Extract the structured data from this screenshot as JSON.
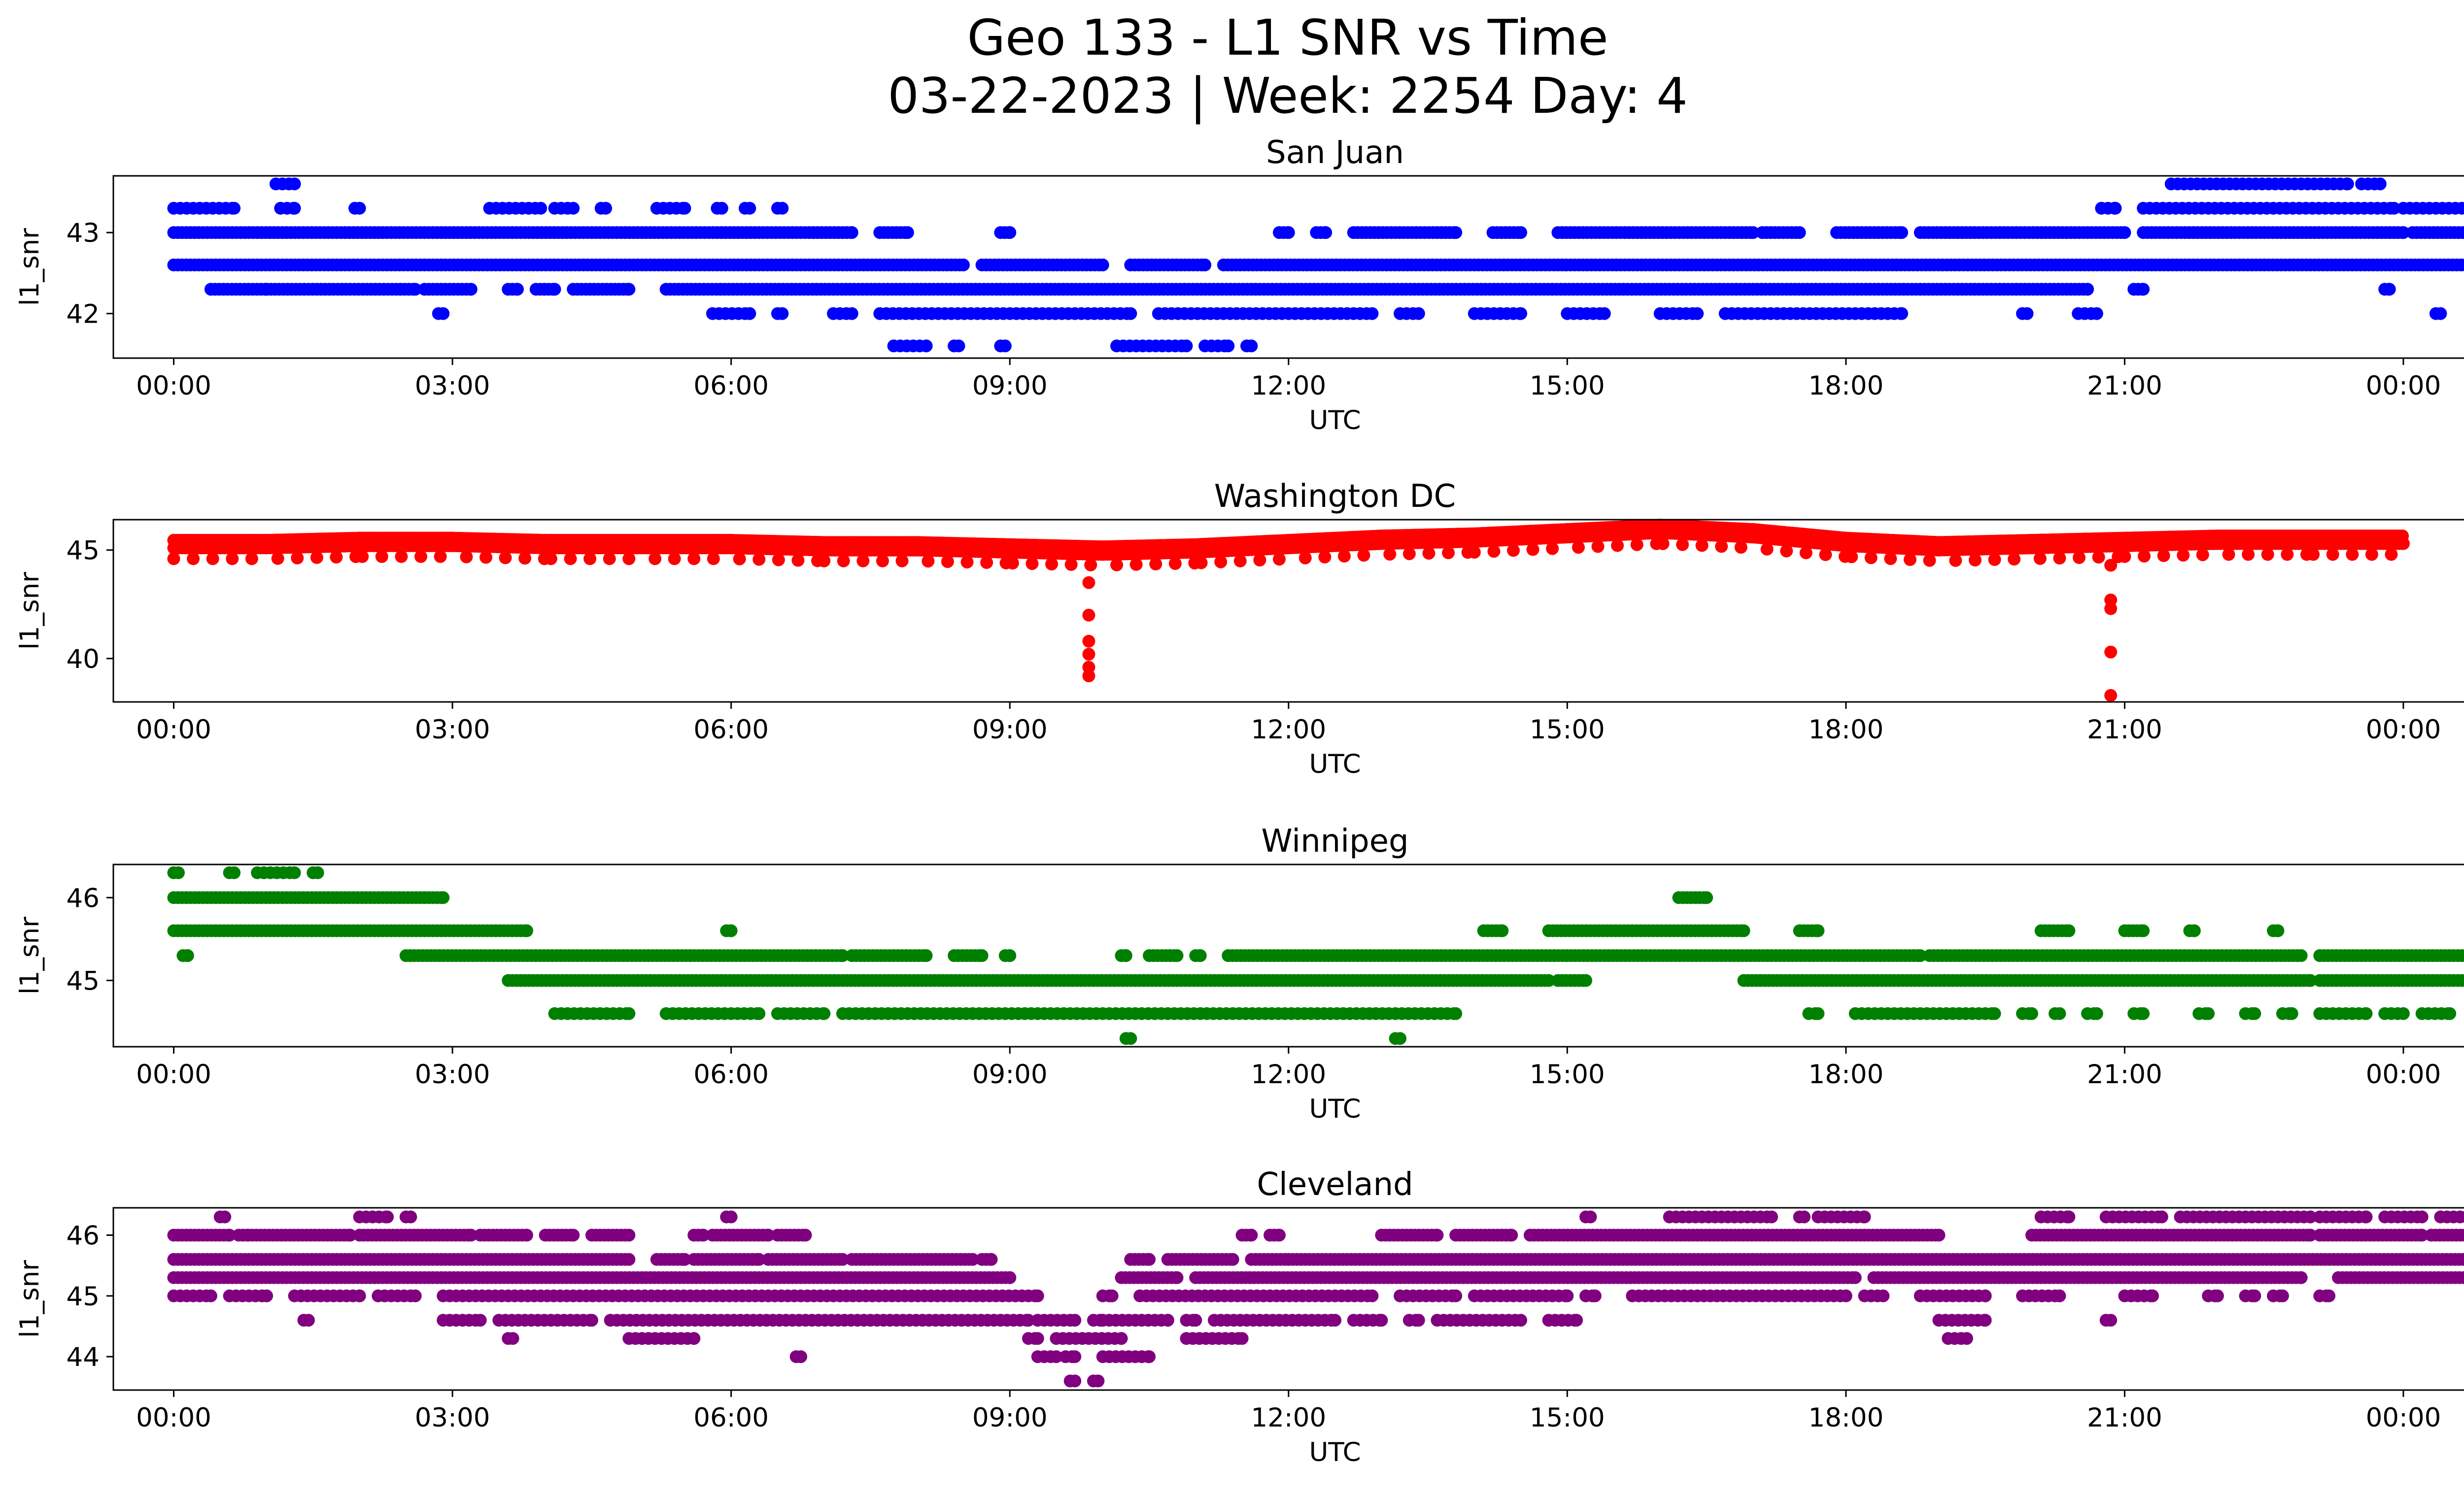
{
  "title_line1": "Geo 133 - L1 SNR vs Time",
  "title_line2": "03-22-2023 | Week: 2254 Day: 4",
  "chart_data": [
    {
      "type": "scatter",
      "title": "San Juan",
      "xlabel": "UTC",
      "ylabel": "l1_snr",
      "color": "#0000ff",
      "x_ticks": [
        "00:00",
        "03:00",
        "06:00",
        "09:00",
        "12:00",
        "15:00",
        "18:00",
        "21:00",
        "00:00"
      ],
      "xlim": [
        -0.65,
        25.65
      ],
      "y_ticks": [
        42,
        43
      ],
      "ylim": [
        41.45,
        43.7
      ],
      "bands": [
        {
          "y": 43.6,
          "segments": [
            [
              1.1,
              1.3
            ],
            [
              21.5,
              23.4
            ],
            [
              23.55,
              23.75
            ]
          ],
          "density": "sparse"
        },
        {
          "y": 43.3,
          "segments": [
            [
              0.0,
              0.65
            ],
            [
              1.15,
              1.3
            ],
            [
              1.95,
              2.0
            ],
            [
              3.4,
              3.95
            ],
            [
              4.1,
              4.3
            ],
            [
              4.6,
              4.65
            ],
            [
              5.2,
              5.5
            ],
            [
              5.85,
              5.9
            ],
            [
              6.15,
              6.2
            ],
            [
              6.5,
              6.55
            ],
            [
              20.75,
              20.9
            ],
            [
              21.2,
              23.9
            ],
            [
              24.0,
              24.9
            ]
          ],
          "density": "sparse"
        },
        {
          "y": 43.0,
          "segments": [
            [
              0.0,
              7.3
            ],
            [
              7.6,
              7.9
            ],
            [
              8.9,
              9.0
            ],
            [
              11.9,
              12.0
            ],
            [
              12.3,
              12.4
            ],
            [
              12.7,
              13.8
            ],
            [
              14.2,
              14.5
            ],
            [
              14.9,
              17.0
            ],
            [
              17.1,
              17.5
            ],
            [
              17.9,
              18.6
            ],
            [
              18.8,
              21.0
            ],
            [
              21.2,
              24.0
            ],
            [
              24.1,
              24.95
            ]
          ],
          "density": "dense"
        },
        {
          "y": 42.6,
          "segments": [
            [
              0.0,
              8.5
            ],
            [
              8.7,
              10.0
            ],
            [
              10.3,
              11.1
            ],
            [
              11.3,
              24.95
            ]
          ],
          "density": "dense"
        },
        {
          "y": 42.3,
          "segments": [
            [
              0.4,
              1.0
            ],
            [
              1.0,
              2.6
            ],
            [
              2.7,
              3.2
            ],
            [
              3.6,
              3.7
            ],
            [
              3.9,
              4.1
            ],
            [
              4.3,
              4.9
            ],
            [
              5.3,
              20.6
            ],
            [
              21.1,
              21.2
            ],
            [
              23.8,
              23.85
            ]
          ],
          "density": "dense"
        },
        {
          "y": 42.0,
          "segments": [
            [
              2.85,
              2.9
            ],
            [
              5.8,
              6.2
            ],
            [
              6.5,
              6.55
            ],
            [
              7.1,
              7.3
            ],
            [
              7.6,
              10.3
            ],
            [
              10.6,
              12.9
            ],
            [
              13.2,
              13.4
            ],
            [
              14.0,
              14.5
            ],
            [
              15.0,
              15.4
            ],
            [
              16.0,
              16.4
            ],
            [
              16.7,
              18.6
            ],
            [
              19.9,
              19.95
            ],
            [
              20.5,
              20.7
            ],
            [
              24.35,
              24.4
            ]
          ],
          "density": "sparse"
        },
        {
          "y": 41.6,
          "segments": [
            [
              7.75,
              8.1
            ],
            [
              8.4,
              8.45
            ],
            [
              8.9,
              8.95
            ],
            [
              10.15,
              10.9
            ],
            [
              11.1,
              11.35
            ],
            [
              11.55,
              11.6
            ]
          ],
          "density": "sparse"
        }
      ]
    },
    {
      "type": "scatter",
      "title": "Washington DC",
      "xlabel": "UTC",
      "ylabel": "l1_snr",
      "color": "#ff0000",
      "x_ticks": [
        "00:00",
        "03:00",
        "06:00",
        "09:00",
        "12:00",
        "15:00",
        "18:00",
        "21:00",
        "00:00"
      ],
      "xlim": [
        -0.65,
        25.65
      ],
      "y_ticks": [
        40,
        45
      ],
      "ylim": [
        38.0,
        46.4
      ],
      "lines": [
        {
          "x": [
            0.0,
            1.0,
            2.0,
            3.0,
            4.0,
            5.0,
            6.0,
            7.0,
            8.0,
            9.0,
            10.0,
            11.0,
            12.0,
            13.0,
            14.0,
            15.0,
            16.0,
            17.0,
            18.0,
            19.0,
            20.0,
            21.0,
            22.0,
            23.0,
            24.0
          ],
          "y": [
            45.1,
            45.1,
            45.2,
            45.2,
            45.1,
            45.1,
            45.1,
            45.0,
            45.0,
            44.9,
            44.8,
            44.9,
            45.1,
            45.3,
            45.4,
            45.6,
            45.8,
            45.6,
            45.2,
            45.0,
            45.1,
            45.2,
            45.3,
            45.3,
            45.3
          ]
        }
      ],
      "spikes": [
        {
          "x": 9.85,
          "y": [
            43.5,
            42.0,
            40.8,
            40.2,
            39.6,
            39.2
          ]
        },
        {
          "x": 20.85,
          "y": [
            44.3,
            42.7,
            42.3,
            40.3,
            38.3
          ]
        }
      ]
    },
    {
      "type": "scatter",
      "title": "Winnipeg",
      "xlabel": "UTC",
      "ylabel": "l1_snr",
      "color": "#008000",
      "x_ticks": [
        "00:00",
        "03:00",
        "06:00",
        "09:00",
        "12:00",
        "15:00",
        "18:00",
        "21:00",
        "00:00"
      ],
      "xlim": [
        -0.65,
        25.65
      ],
      "y_ticks": [
        45,
        46
      ],
      "ylim": [
        44.2,
        46.4
      ],
      "bands": [
        {
          "y": 46.3,
          "segments": [
            [
              0.0,
              0.05
            ],
            [
              0.6,
              0.65
            ],
            [
              0.9,
              1.3
            ],
            [
              1.5,
              1.55
            ]
          ],
          "density": "sparse"
        },
        {
          "y": 46.0,
          "segments": [
            [
              0.0,
              2.9
            ],
            [
              16.2,
              16.5
            ]
          ],
          "density": "dense"
        },
        {
          "y": 45.6,
          "segments": [
            [
              0.0,
              3.8
            ],
            [
              5.95,
              6.0
            ],
            [
              14.1,
              14.3
            ],
            [
              14.8,
              16.9
            ],
            [
              17.5,
              17.7
            ],
            [
              20.1,
              20.4
            ],
            [
              21.0,
              21.2
            ],
            [
              21.7,
              21.75
            ],
            [
              22.6,
              22.65
            ]
          ],
          "density": "dense"
        },
        {
          "y": 45.3,
          "segments": [
            [
              0.1,
              0.15
            ],
            [
              2.5,
              7.2
            ],
            [
              7.3,
              8.1
            ],
            [
              8.4,
              8.7
            ],
            [
              8.95,
              9.0
            ],
            [
              10.2,
              10.25
            ],
            [
              10.5,
              10.8
            ],
            [
              11.0,
              11.05
            ],
            [
              11.35,
              18.8
            ],
            [
              18.9,
              22.9
            ],
            [
              23.1,
              24.9
            ]
          ],
          "density": "dense"
        },
        {
          "y": 45.0,
          "segments": [
            [
              3.6,
              14.8
            ],
            [
              14.9,
              15.2
            ],
            [
              16.9,
              23.0
            ],
            [
              23.1,
              24.9
            ]
          ],
          "density": "dense"
        },
        {
          "y": 44.6,
          "segments": [
            [
              4.1,
              4.9
            ],
            [
              5.3,
              6.3
            ],
            [
              6.5,
              7.0
            ],
            [
              7.2,
              13.8
            ],
            [
              17.6,
              17.7
            ],
            [
              18.1,
              19.6
            ],
            [
              19.9,
              20.0
            ],
            [
              20.25,
              20.3
            ],
            [
              20.6,
              20.7
            ],
            [
              21.1,
              21.2
            ],
            [
              21.8,
              21.9
            ],
            [
              22.3,
              22.4
            ],
            [
              22.7,
              22.8
            ],
            [
              23.1,
              23.6
            ],
            [
              23.8,
              24.0
            ],
            [
              24.2,
              24.5
            ],
            [
              24.8,
              24.9
            ]
          ],
          "density": "sparse"
        },
        {
          "y": 44.3,
          "segments": [
            [
              10.25,
              10.3
            ],
            [
              13.15,
              13.2
            ]
          ],
          "density": "sparse"
        }
      ]
    },
    {
      "type": "scatter",
      "title": "Cleveland",
      "xlabel": "UTC",
      "ylabel": "l1_snr",
      "color": "#800080",
      "x_ticks": [
        "00:00",
        "03:00",
        "06:00",
        "09:00",
        "12:00",
        "15:00",
        "18:00",
        "21:00",
        "00:00"
      ],
      "xlim": [
        -0.65,
        25.65
      ],
      "y_ticks": [
        44,
        45,
        46
      ],
      "ylim": [
        43.45,
        46.45
      ],
      "bands": [
        {
          "y": 46.3,
          "segments": [
            [
              0.5,
              0.55
            ],
            [
              2.0,
              2.3
            ],
            [
              2.5,
              2.55
            ],
            [
              5.95,
              6.0
            ],
            [
              15.2,
              15.25
            ],
            [
              16.1,
              17.2
            ],
            [
              17.5,
              17.55
            ],
            [
              17.7,
              18.2
            ],
            [
              20.1,
              20.4
            ],
            [
              20.8,
              21.4
            ],
            [
              21.6,
              23.0
            ],
            [
              23.1,
              23.6
            ],
            [
              23.8,
              24.2
            ],
            [
              24.4,
              24.9
            ]
          ],
          "density": "sparse"
        },
        {
          "y": 46.0,
          "segments": [
            [
              0.0,
              0.6
            ],
            [
              0.7,
              0.8
            ],
            [
              0.8,
              1.9
            ],
            [
              2.0,
              3.2
            ],
            [
              3.3,
              3.8
            ],
            [
              4.0,
              4.3
            ],
            [
              4.5,
              4.9
            ],
            [
              5.6,
              5.7
            ],
            [
              5.8,
              6.4
            ],
            [
              6.5,
              6.8
            ],
            [
              11.5,
              11.6
            ],
            [
              11.8,
              11.9
            ],
            [
              13.0,
              13.6
            ],
            [
              13.8,
              14.4
            ],
            [
              14.6,
              19.0
            ],
            [
              20.0,
              23.0
            ],
            [
              23.1,
              24.2
            ],
            [
              24.3,
              24.9
            ]
          ],
          "density": "dense"
        },
        {
          "y": 45.6,
          "segments": [
            [
              0.0,
              4.9
            ],
            [
              5.2,
              5.5
            ],
            [
              5.6,
              6.3
            ],
            [
              6.4,
              7.2
            ],
            [
              7.3,
              8.6
            ],
            [
              8.7,
              8.8
            ],
            [
              10.3,
              10.5
            ],
            [
              10.7,
              11.4
            ],
            [
              11.6,
              12.0
            ],
            [
              12.0,
              24.9
            ]
          ],
          "density": "dense"
        },
        {
          "y": 45.3,
          "segments": [
            [
              0.0,
              9.0
            ],
            [
              10.2,
              10.8
            ],
            [
              11.0,
              18.1
            ],
            [
              18.3,
              22.9
            ],
            [
              23.3,
              24.9
            ]
          ],
          "density": "dense"
        },
        {
          "y": 45.0,
          "segments": [
            [
              0.0,
              0.4
            ],
            [
              0.6,
              1.0
            ],
            [
              1.3,
              2.0
            ],
            [
              2.2,
              2.6
            ],
            [
              2.9,
              9.3
            ],
            [
              10.0,
              10.1
            ],
            [
              10.4,
              12.9
            ],
            [
              13.2,
              13.8
            ],
            [
              14.0,
              15.0
            ],
            [
              15.2,
              15.3
            ],
            [
              15.7,
              18.0
            ],
            [
              18.2,
              18.4
            ],
            [
              18.8,
              19.5
            ],
            [
              19.9,
              20.3
            ],
            [
              21.0,
              21.3
            ],
            [
              21.9,
              22.0
            ],
            [
              22.3,
              22.4
            ],
            [
              22.6,
              22.7
            ],
            [
              23.1,
              23.2
            ]
          ],
          "density": "sparse"
        },
        {
          "y": 44.6,
          "segments": [
            [
              1.4,
              1.45
            ],
            [
              2.9,
              3.3
            ],
            [
              3.5,
              4.5
            ],
            [
              4.7,
              9.2
            ],
            [
              9.3,
              9.7
            ],
            [
              9.9,
              10.0
            ],
            [
              10.0,
              10.7
            ],
            [
              10.9,
              11.0
            ],
            [
              11.2,
              12.5
            ],
            [
              12.7,
              13.0
            ],
            [
              13.3,
              13.4
            ],
            [
              13.6,
              14.5
            ],
            [
              14.8,
              15.1
            ],
            [
              19.0,
              19.5
            ],
            [
              20.8,
              20.85
            ]
          ],
          "density": "sparse"
        },
        {
          "y": 44.3,
          "segments": [
            [
              3.6,
              3.65
            ],
            [
              4.9,
              5.6
            ],
            [
              9.2,
              9.3
            ],
            [
              9.5,
              10.2
            ],
            [
              10.9,
              11.5
            ],
            [
              19.1,
              19.3
            ]
          ],
          "density": "sparse"
        },
        {
          "y": 44.0,
          "segments": [
            [
              6.7,
              6.75
            ],
            [
              9.3,
              9.5
            ],
            [
              9.6,
              9.7
            ],
            [
              10.0,
              10.5
            ]
          ],
          "density": "sparse"
        },
        {
          "y": 43.6,
          "segments": [
            [
              9.65,
              9.7
            ],
            [
              9.9,
              9.95
            ]
          ],
          "density": "sparse"
        }
      ]
    }
  ]
}
